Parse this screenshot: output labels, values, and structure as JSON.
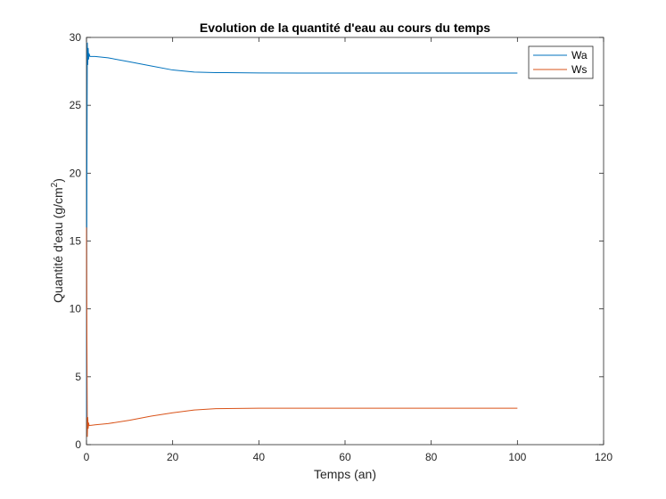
{
  "chart_data": {
    "type": "line",
    "title": "Evolution de la quantité d'eau au cours du temps",
    "xlabel": "Temps (an)",
    "ylabel_main": "Quantité d'eau (g/cm",
    "ylabel_sup": "2",
    "ylabel_close": ")",
    "xlim": [
      0,
      120
    ],
    "ylim": [
      0,
      30
    ],
    "xticks": [
      0,
      20,
      40,
      60,
      80,
      100,
      120
    ],
    "yticks": [
      0,
      5,
      10,
      15,
      20,
      25,
      30
    ],
    "grid": false,
    "legend_position": "top-right",
    "series": [
      {
        "name": "Wa",
        "color": "#0072BD",
        "x": [
          0,
          0.1,
          0.2,
          0.3,
          0.4,
          0.5,
          0.6,
          0.8,
          1,
          2,
          5,
          10,
          15,
          20,
          25,
          28,
          30,
          35,
          40,
          50,
          60,
          70,
          80,
          90,
          100
        ],
        "y": [
          2,
          20,
          29.6,
          28.0,
          29.2,
          28.4,
          28.8,
          28.6,
          28.6,
          28.6,
          28.5,
          28.2,
          27.9,
          27.6,
          27.45,
          27.42,
          27.41,
          27.4,
          27.38,
          27.37,
          27.37,
          27.37,
          27.37,
          27.37,
          27.37
        ]
      },
      {
        "name": "Ws",
        "color": "#D95319",
        "x": [
          0,
          0.1,
          0.2,
          0.3,
          0.4,
          0.5,
          0.6,
          0.8,
          1,
          2,
          5,
          10,
          15,
          20,
          25,
          30,
          35,
          40,
          50,
          60,
          70,
          80,
          90,
          100
        ],
        "y": [
          16,
          8,
          0.6,
          2.0,
          1.2,
          1.6,
          1.4,
          1.42,
          1.42,
          1.46,
          1.55,
          1.8,
          2.1,
          2.35,
          2.55,
          2.65,
          2.67,
          2.68,
          2.68,
          2.68,
          2.68,
          2.68,
          2.68,
          2.68
        ]
      }
    ]
  }
}
